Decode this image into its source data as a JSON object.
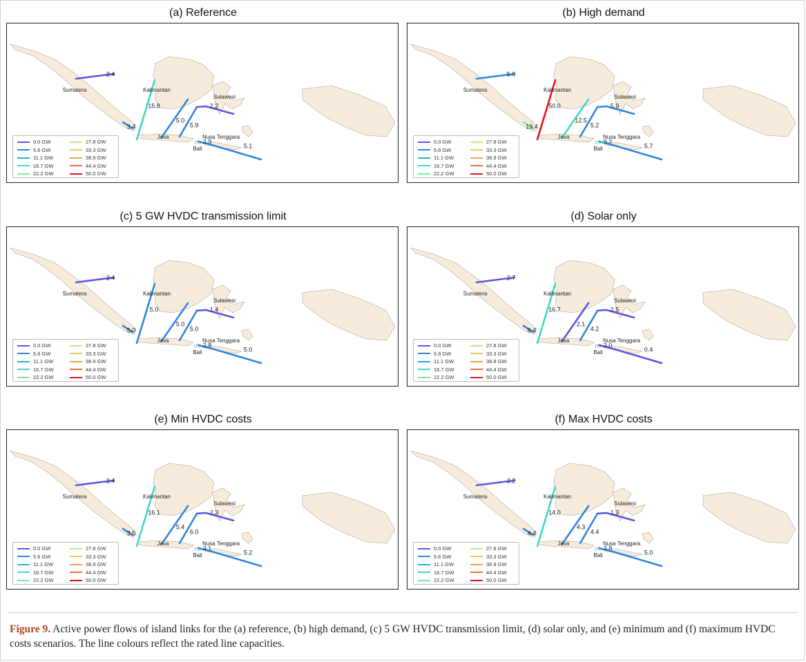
{
  "caption": {
    "label": "Figure 9.",
    "text": " Active power flows of island links for the (a) reference, (b) high demand, (c) 5 GW HVDC transmission limit, (d) solar only, and (e) minimum and (f) maximum HVDC costs scenarios. The line colours reflect the rated line capacities."
  },
  "legend": [
    {
      "label": "0.0 GW",
      "color": "#5a55e3"
    },
    {
      "label": "5.6 GW",
      "color": "#2b87e0"
    },
    {
      "label": "11.1 GW",
      "color": "#1fb4d6"
    },
    {
      "label": "16.7 GW",
      "color": "#3fd9c0"
    },
    {
      "label": "22.2 GW",
      "color": "#79ef9b"
    },
    {
      "label": "27.8 GW",
      "color": "#b6f07f"
    },
    {
      "label": "33.3 GW",
      "color": "#f0c65f"
    },
    {
      "label": "38.9 GW",
      "color": "#f7a24f"
    },
    {
      "label": "44.4 GW",
      "color": "#f66b35"
    },
    {
      "label": "50.0 GW",
      "color": "#e3141c"
    }
  ],
  "islands": [
    "Sumatera",
    "Kalimantan",
    "Sulawesi",
    "Java",
    "Bali",
    "Nusa Tenggara"
  ],
  "panels": [
    {
      "title": "(a) Reference",
      "links": {
        "sumatera": {
          "value": "2.4",
          "color": "#5a55e3"
        },
        "sum_java": {
          "value": "3.4",
          "color": "#2b87e0"
        },
        "sum_kal": {
          "value": "15.8",
          "color": "#3fd9c0"
        },
        "java_kal": {
          "value": "5.0",
          "color": "#2b87e0"
        },
        "java_sul": {
          "value": "5.9",
          "color": "#2b87e0"
        },
        "sul_kal": {
          "value": "2.2",
          "color": "#5a55e3"
        },
        "java_bali": {
          "value": "2.9",
          "color": "#2b87e0"
        },
        "bali_nt": {
          "value": "5.1",
          "color": "#2b87e0"
        }
      }
    },
    {
      "title": "(b) High demand",
      "links": {
        "sumatera": {
          "value": "5.0",
          "color": "#2b87e0"
        },
        "sum_java": {
          "value": "19.4",
          "color": "#79ef9b"
        },
        "sum_kal": {
          "value": "50.0",
          "color": "#e3141c"
        },
        "java_kal": {
          "value": "12.5",
          "color": "#3fd9c0"
        },
        "java_sul": {
          "value": "5.2",
          "color": "#2b87e0"
        },
        "sul_kal": {
          "value": "5.9",
          "color": "#2b87e0"
        },
        "java_bali": {
          "value": "9.2",
          "color": "#1fb4d6"
        },
        "bali_nt": {
          "value": "5.7",
          "color": "#2b87e0"
        }
      }
    },
    {
      "title": "(c) 5 GW HVDC transmission limit",
      "links": {
        "sumatera": {
          "value": "2.4",
          "color": "#5a55e3"
        },
        "sum_java": {
          "value": "5.0",
          "color": "#2b87e0"
        },
        "sum_kal": {
          "value": "5.0",
          "color": "#2b87e0"
        },
        "java_kal": {
          "value": "5.0",
          "color": "#2b87e0"
        },
        "java_sul": {
          "value": "5.0",
          "color": "#2b87e0"
        },
        "sul_kal": {
          "value": "1.4",
          "color": "#5a55e3"
        },
        "java_bali": {
          "value": "2.8",
          "color": "#2b87e0"
        },
        "bali_nt": {
          "value": "5.0",
          "color": "#2b87e0"
        }
      }
    },
    {
      "title": "(d) Solar only",
      "links": {
        "sumatera": {
          "value": "2.7",
          "color": "#5a55e3"
        },
        "sum_java": {
          "value": "6.4",
          "color": "#2b87e0"
        },
        "sum_kal": {
          "value": "16.7",
          "color": "#3fd9c0"
        },
        "java_kal": {
          "value": "2.1",
          "color": "#5a55e3"
        },
        "java_sul": {
          "value": "4.2",
          "color": "#2b87e0"
        },
        "sul_kal": {
          "value": "2.5",
          "color": "#5a55e3"
        },
        "java_bali": {
          "value": "2.0",
          "color": "#5a55e3"
        },
        "bali_nt": {
          "value": "0.4",
          "color": "#5a55e3"
        }
      }
    },
    {
      "title": "(e) Min HVDC costs",
      "links": {
        "sumatera": {
          "value": "2.4",
          "color": "#5a55e3"
        },
        "sum_java": {
          "value": "3.5",
          "color": "#2b87e0"
        },
        "sum_kal": {
          "value": "16.1",
          "color": "#3fd9c0"
        },
        "java_kal": {
          "value": "5.4",
          "color": "#2b87e0"
        },
        "java_sul": {
          "value": "6.0",
          "color": "#2b87e0"
        },
        "sul_kal": {
          "value": "2.3",
          "color": "#5a55e3"
        },
        "java_bali": {
          "value": "3.1",
          "color": "#2b87e0"
        },
        "bali_nt": {
          "value": "5.2",
          "color": "#2b87e0"
        }
      }
    },
    {
      "title": "(f) Max HVDC costs",
      "links": {
        "sumatera": {
          "value": "2.2",
          "color": "#5a55e3"
        },
        "sum_java": {
          "value": "4.4",
          "color": "#2b87e0"
        },
        "sum_kal": {
          "value": "14.0",
          "color": "#3fd9c0"
        },
        "java_kal": {
          "value": "4.3",
          "color": "#2b87e0"
        },
        "java_sul": {
          "value": "4.4",
          "color": "#2b87e0"
        },
        "sul_kal": {
          "value": "1.3",
          "color": "#5a55e3"
        },
        "java_bali": {
          "value": "2.8",
          "color": "#2b87e0"
        },
        "bali_nt": {
          "value": "5.0",
          "color": "#2b87e0"
        }
      }
    }
  ]
}
